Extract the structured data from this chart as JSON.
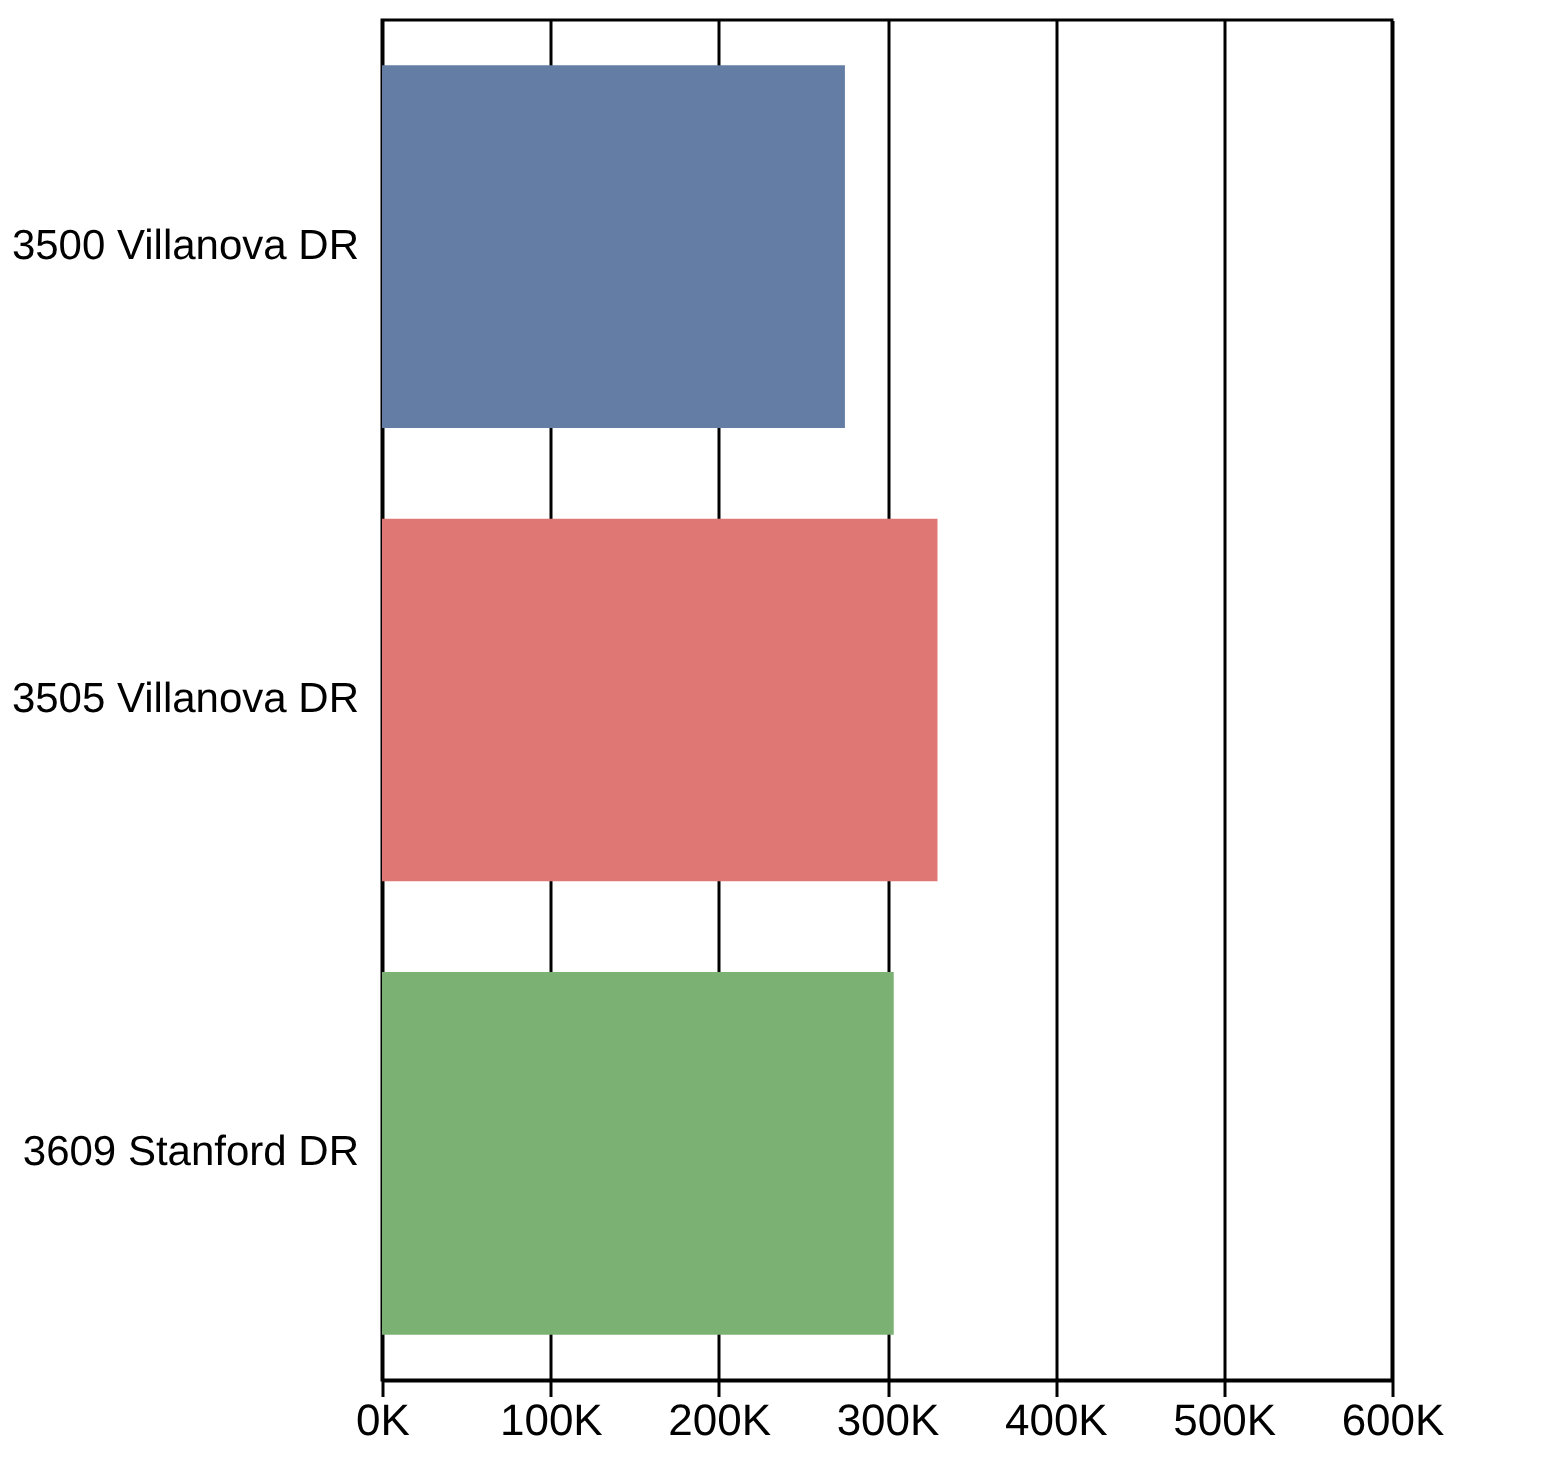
{
  "chart_data": {
    "type": "bar",
    "orientation": "horizontal",
    "categories": [
      "3500 Villanova DR",
      "3505 Villanova DR",
      "3609 Stanford DR"
    ],
    "values": [
      275000,
      330000,
      304000
    ],
    "colors": [
      "#637da4",
      "#df7874",
      "#7bb173"
    ],
    "xlim": [
      0,
      600000
    ],
    "xticks": [
      {
        "value": 0,
        "label": "0K"
      },
      {
        "value": 100000,
        "label": "100K"
      },
      {
        "value": 200000,
        "label": "200K"
      },
      {
        "value": 300000,
        "label": "300K"
      },
      {
        "value": 400000,
        "label": "400K"
      },
      {
        "value": 500000,
        "label": "500K"
      },
      {
        "value": 600000,
        "label": "600K"
      }
    ],
    "grid": "x"
  }
}
